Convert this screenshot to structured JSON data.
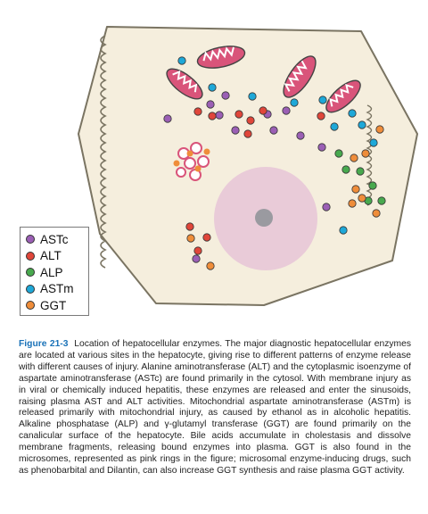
{
  "legend": {
    "items": [
      {
        "label": "ASTc",
        "color": "#9b5fb5"
      },
      {
        "label": "ALT",
        "color": "#e0463a"
      },
      {
        "label": "ALP",
        "color": "#48a94e"
      },
      {
        "label": "ASTm",
        "color": "#1ea8d8"
      },
      {
        "label": "GGT",
        "color": "#ef8d3a"
      }
    ]
  },
  "caption": {
    "label": "Figure 21-3",
    "text": "Location of hepatocellular enzymes. The major diagnostic hepatocellular enzymes are located at various sites in the hepatocyte, giving rise to different patterns of enzyme release with different causes of injury. Alanine aminotransferase (ALT) and the cytoplasmic isoenzyme of aspartate aminotransferase (ASTc) are found primarily in the cytosol. With membrane injury as in viral or chemically induced hepatitis, these enzymes are released and enter the sinusoids, raising plasma AST and ALT activities. Mitochondrial aspartate aminotransferase (ASTm) is released primarily with mitochondrial injury, as caused by ethanol as in alcoholic hepatitis. Alkaline phosphatase (ALP) and γ-glutamyl transferase (GGT) are found primarily on the canalicular surface of the hepatocyte. Bile acids accumulate in cholestasis and dissolve membrane fragments, releasing bound enzymes into plasma. GGT is also found in the microsomes, represented as pink rings in the figure; microsomal enzyme-inducing drugs, such as phenobarbital and Dilantin, can also increase GGT synthesis and raise plasma GGT activity."
  },
  "colors": {
    "cell_fill": "#f5eedd",
    "cell_stroke": "#7a7462",
    "nucleus": "#e9cbd8",
    "nucleolus": "#9a9aa0",
    "mito_fill": "#d9547a"
  }
}
